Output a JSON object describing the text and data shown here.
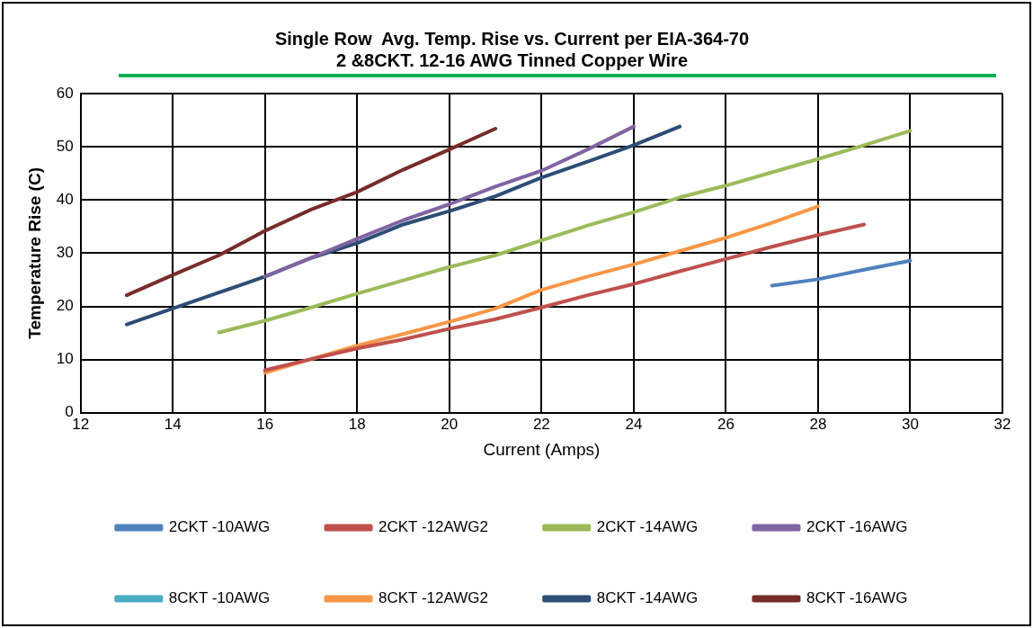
{
  "chart_data": {
    "type": "line",
    "title": "Single Row  Avg. Temp. Rise vs. Current per EIA-364-70",
    "subtitle": "2 &8CKT. 12-16 AWG Tinned Copper Wire",
    "xlabel": "Current (Amps)",
    "ylabel": "Temperature Rise (C)",
    "xlim": [
      12,
      32
    ],
    "xticks": [
      12,
      14,
      16,
      18,
      20,
      22,
      24,
      26,
      28,
      30,
      32
    ],
    "ylim": [
      0,
      60
    ],
    "yticks": [
      0,
      10,
      20,
      30,
      40,
      50,
      60
    ],
    "grid": true,
    "legend": "bottom",
    "marker": "none",
    "line_style": "solid",
    "series": [
      {
        "name": "2CKT -10AWG",
        "color": "#4f81bd",
        "x": [
          27,
          28,
          29,
          30
        ],
        "values": [
          23.9,
          25.1,
          26.9,
          28.6
        ]
      },
      {
        "name": "2CKT -12AWG2",
        "color": "#c0504d",
        "x": [
          16,
          17,
          18,
          19,
          20,
          21,
          22,
          23,
          24,
          25,
          26,
          27,
          28,
          29
        ],
        "values": [
          8.0,
          10.1,
          12.1,
          13.8,
          15.8,
          17.6,
          19.8,
          22.1,
          24.2,
          26.6,
          28.9,
          31.2,
          33.4,
          35.4
        ]
      },
      {
        "name": "2CKT -14AWG",
        "color": "#9bbb59",
        "x": [
          15,
          16,
          17,
          18,
          19,
          20,
          21,
          22,
          23,
          24,
          25,
          26,
          27,
          28,
          29,
          30
        ],
        "values": [
          15.1,
          17.3,
          19.8,
          22.4,
          24.9,
          27.4,
          29.6,
          32.4,
          35.2,
          37.7,
          40.5,
          42.7,
          45.2,
          47.7,
          50.3,
          53.0
        ]
      },
      {
        "name": "2CKT -16AWG",
        "color": "#8064a2",
        "x": [
          16,
          17,
          18,
          19,
          20,
          21,
          22,
          23,
          24
        ],
        "values": [
          25.6,
          29.1,
          32.7,
          36.2,
          39.2,
          42.5,
          45.5,
          49.5,
          53.8
        ]
      },
      {
        "name": "8CKT -10AWG",
        "color": "#4bacc6"
      },
      {
        "name": "8CKT -12AWG2",
        "color": "#f79646",
        "x": [
          16,
          17,
          18,
          19,
          20,
          21,
          22,
          23,
          24,
          25,
          26,
          27,
          28
        ],
        "values": [
          7.5,
          10.1,
          12.6,
          14.8,
          17.1,
          19.6,
          23.1,
          25.6,
          27.9,
          30.4,
          32.9,
          35.7,
          38.8
        ]
      },
      {
        "name": "8CKT -14AWG",
        "color": "#2c4d75",
        "x": [
          13,
          14,
          15,
          16,
          17,
          18,
          19,
          20,
          21,
          22,
          23,
          24,
          25
        ],
        "values": [
          16.6,
          19.6,
          22.6,
          25.6,
          29.1,
          31.9,
          35.4,
          37.9,
          40.7,
          44.2,
          47.2,
          50.3,
          53.8
        ]
      },
      {
        "name": "8CKT -16AWG",
        "color": "#772c2a",
        "x": [
          13,
          14,
          15,
          16,
          17,
          18,
          19,
          20,
          21
        ],
        "values": [
          22.1,
          25.9,
          29.6,
          34.2,
          38.2,
          41.5,
          45.7,
          49.5,
          53.4
        ]
      }
    ]
  }
}
